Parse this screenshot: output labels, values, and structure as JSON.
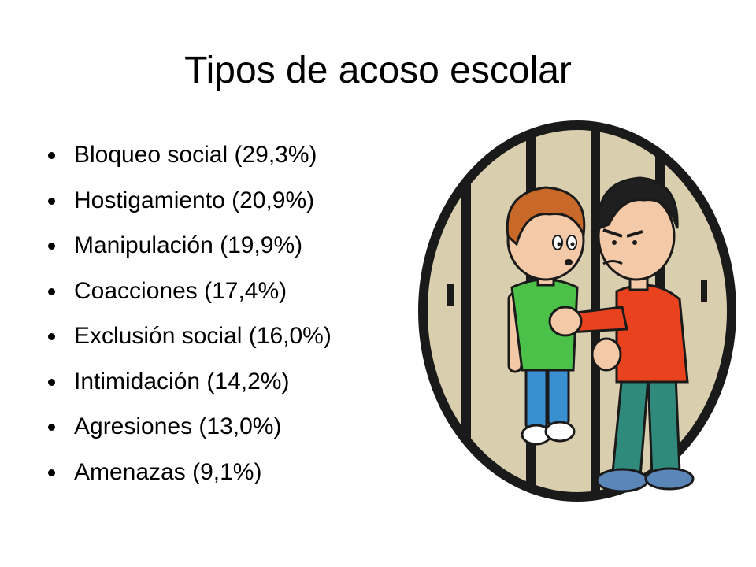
{
  "slide": {
    "title": "Tipos de acoso escolar",
    "bullets": [
      {
        "text": "Bloqueo social (29,3%)"
      },
      {
        "text": "Hostigamiento (20,9%)"
      },
      {
        "text": "Manipulación (19,9%)"
      },
      {
        "text": "Coacciones (17,4%)"
      },
      {
        "text": "Exclusión social (16,0%)"
      },
      {
        "text": "Intimidación (14,2%)"
      },
      {
        "text": "Agresiones (13,0%)"
      },
      {
        "text": "Amenazas (9,1%)"
      }
    ]
  },
  "illustration": {
    "icon": "bullying-cartoon-illustration",
    "colors": {
      "background": "#d9cfae",
      "outline": "#1a1a1a",
      "victim_shirt": "#4cc14a",
      "victim_pants": "#3a8fd0",
      "victim_hair": "#c8692a",
      "bully_shirt": "#e8431e",
      "bully_pants": "#2f8a7c",
      "bully_hair": "#1f1f1f",
      "skin": "#f3c9a8",
      "shoes": "#5a86b8"
    }
  }
}
